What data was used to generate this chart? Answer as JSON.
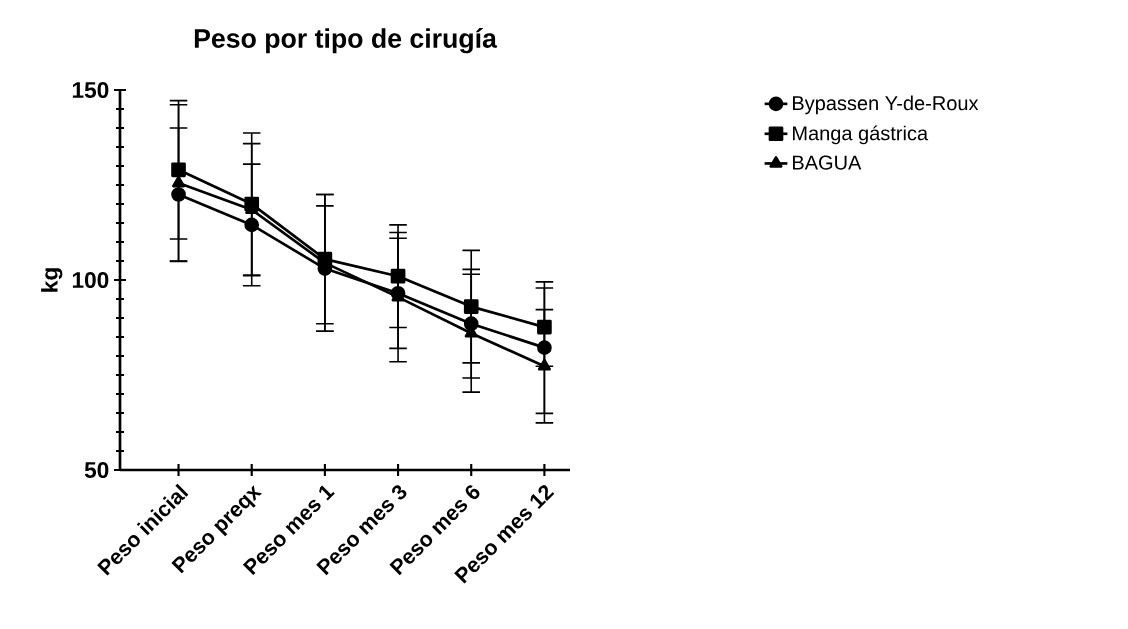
{
  "chart_data": {
    "type": "line",
    "title": "Peso por tipo de cirugía",
    "ylabel": "kg",
    "categories": [
      "Peso inicial",
      "Peso preqx",
      "Peso mes 1",
      "Peso  mes 3",
      "Peso mes 6",
      "Peso mes 12"
    ],
    "series": [
      {
        "name": "Bypassen Y-de-Roux",
        "color": "#000000",
        "marker": "circle",
        "values": [
          122.5,
          114.5,
          103,
          96.5,
          88.5,
          82.2
        ],
        "errors": [
          17.5,
          16,
          16.5,
          14.5,
          14.3,
          17.3
        ]
      },
      {
        "name": "Manga gástrica",
        "color": "#000000",
        "marker": "square",
        "values": [
          129,
          120,
          105.5,
          101,
          93,
          87.6
        ],
        "errors": [
          18.2,
          18.7,
          17,
          13.5,
          14.8,
          10.3
        ]
      },
      {
        "name": "BAGUA",
        "color": "#000000",
        "marker": "triangle",
        "values": [
          125.5,
          118.5,
          104.5,
          95.5,
          86,
          77.3
        ],
        "errors": [
          20.6,
          17.4,
          18,
          17,
          15.5,
          14.9
        ]
      }
    ],
    "ylim": [
      50,
      150
    ],
    "yticks": [
      50,
      {
        "value": 55,
        "label": null
      },
      {
        "value": 60,
        "label": null
      },
      {
        "value": 65,
        "label": null
      },
      {
        "value": 70,
        "label": null
      },
      {
        "value": 75,
        "label": null
      },
      {
        "value": 80,
        "label": null
      },
      {
        "value": 85,
        "label": null
      },
      {
        "value": 90,
        "label": null
      },
      {
        "value": 95,
        "label": null
      },
      100,
      {
        "value": 105,
        "label": null
      },
      {
        "value": 110,
        "label": null
      },
      {
        "value": 115,
        "label": null
      },
      {
        "value": 120,
        "label": null
      },
      {
        "value": 125,
        "label": null
      },
      {
        "value": 130,
        "label": null
      },
      {
        "value": 135,
        "label": null
      },
      {
        "value": 140,
        "label": null
      },
      {
        "value": 145,
        "label": null
      },
      150
    ],
    "grid": false,
    "legend": "right",
    "line_style": "solid"
  }
}
